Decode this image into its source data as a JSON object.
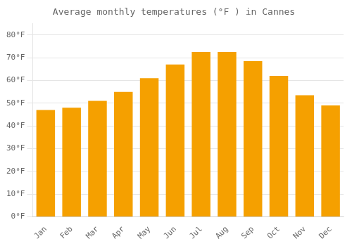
{
  "chart_data": {
    "type": "bar",
    "title": "Average monthly temperatures (°F ) in Cannes",
    "categories": [
      "Jan",
      "Feb",
      "Mar",
      "Apr",
      "May",
      "Jun",
      "Jul",
      "Aug",
      "Sep",
      "Oct",
      "Nov",
      "Dec"
    ],
    "values": [
      47,
      48,
      51,
      55,
      61,
      67,
      72.5,
      72.5,
      68.5,
      62,
      53.5,
      49
    ],
    "color": "#F5A000",
    "ylim": [
      0,
      85
    ],
    "yticks": [
      {
        "value": 0,
        "label": "0°F"
      },
      {
        "value": 10,
        "label": "10°F"
      },
      {
        "value": 20,
        "label": "20°F"
      },
      {
        "value": 30,
        "label": "30°F"
      },
      {
        "value": 40,
        "label": "40°F"
      },
      {
        "value": 50,
        "label": "50°F"
      },
      {
        "value": 60,
        "label": "60°F"
      },
      {
        "value": 70,
        "label": "70°F"
      },
      {
        "value": 80,
        "label": "80°F"
      }
    ],
    "grid": true
  }
}
